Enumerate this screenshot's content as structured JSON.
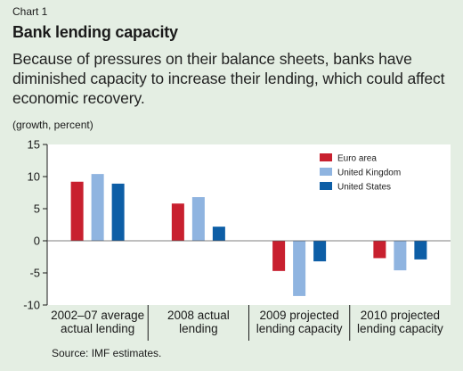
{
  "header": {
    "chart_number": "Chart 1",
    "title": "Bank lending capacity",
    "subtitle": "Because of pressures on their balance sheets, banks have diminished capacity to increase their lending, which could affect economic recovery.",
    "unit": "(growth, percent)"
  },
  "footer": {
    "source": "Source: IMF estimates."
  },
  "chart_data": {
    "type": "bar",
    "categories": [
      [
        "2002–07 average",
        "actual lending"
      ],
      [
        "2008 actual",
        "lending"
      ],
      [
        "2009 projected",
        "lending capacity"
      ],
      [
        "2010 projected",
        "lending capacity"
      ]
    ],
    "series": [
      {
        "name": "Euro area",
        "color": "#c8202f",
        "values": [
          9.2,
          5.8,
          -4.7,
          -2.7
        ]
      },
      {
        "name": "United Kingdom",
        "color": "#8fb4e0",
        "values": [
          10.4,
          6.8,
          -8.6,
          -4.6
        ]
      },
      {
        "name": "United States",
        "color": "#0d5ea6",
        "values": [
          8.9,
          2.2,
          -3.2,
          -2.9
        ]
      }
    ],
    "ylim": [
      -10,
      15
    ],
    "yticks": [
      15,
      10,
      5,
      0,
      -5,
      -10
    ],
    "ytick_labels": [
      "15",
      "10",
      "5",
      "0",
      "-5",
      "-10"
    ],
    "legend_position": "top-right",
    "plot_background": "#ffffff",
    "grid": false
  }
}
